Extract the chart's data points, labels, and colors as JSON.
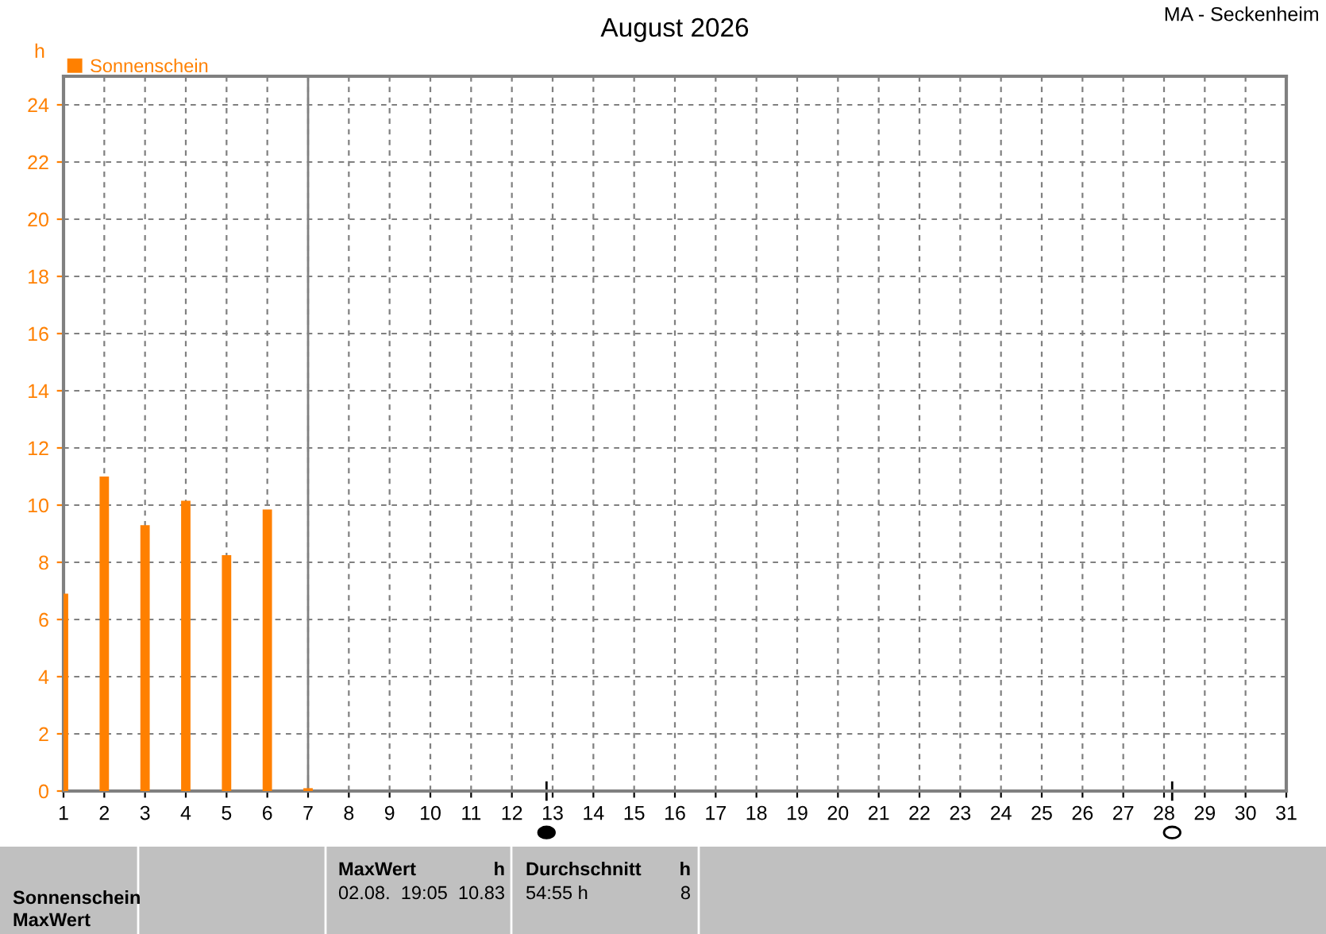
{
  "chart_data": {
    "type": "bar",
    "title": "August 2026",
    "ylabel": "h",
    "x": [
      1,
      2,
      3,
      4,
      5,
      6,
      7
    ],
    "series": [
      {
        "name": "Sonnenschein",
        "color": "#ff8000",
        "values": [
          6.9,
          11.0,
          9.3,
          10.15,
          8.25,
          9.85,
          0.1
        ]
      }
    ],
    "xlim": [
      1,
      31
    ],
    "xticks": [
      1,
      2,
      3,
      4,
      5,
      6,
      7,
      8,
      9,
      10,
      11,
      12,
      13,
      14,
      15,
      16,
      17,
      18,
      19,
      20,
      21,
      22,
      23,
      24,
      25,
      26,
      27,
      28,
      29,
      30,
      31
    ],
    "ylim": [
      0,
      25
    ],
    "yticks": [
      0,
      2,
      4,
      6,
      8,
      10,
      12,
      14,
      16,
      18,
      20,
      22,
      24
    ],
    "ref_lines": [
      {
        "axis": "x",
        "value": 7,
        "color": "#808080"
      }
    ],
    "grid": true,
    "legend": "top left",
    "annotations": [
      "MA - Seckenheim",
      "Sonnenschein",
      "MaxWert",
      "MaxWert",
      "h",
      "02.08.  19:05",
      "10.83",
      "Durchschnitt",
      "h",
      "54:55 h",
      "8"
    ]
  }
}
